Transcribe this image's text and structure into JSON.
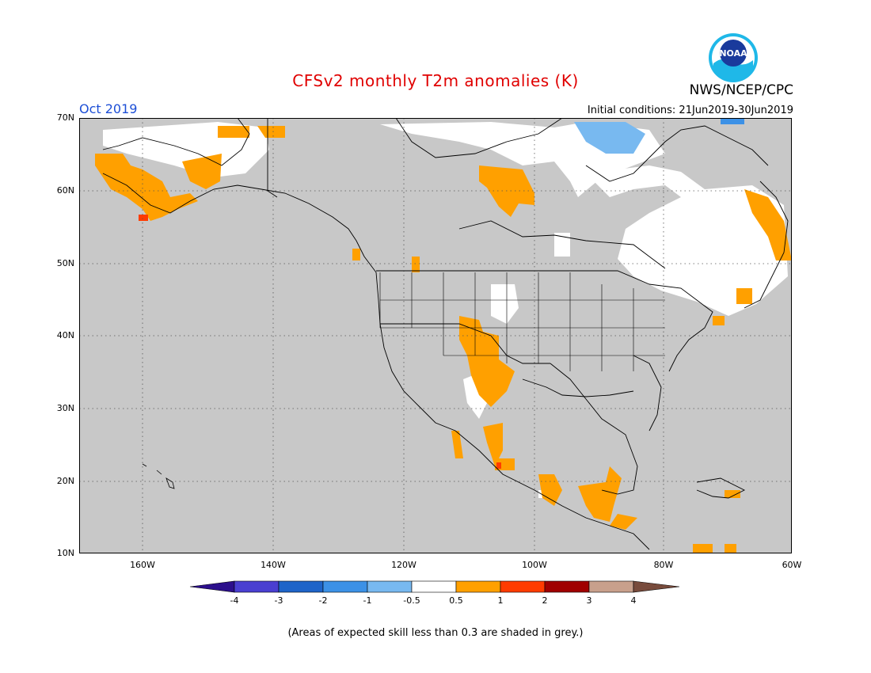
{
  "header": {
    "title": "CFSv2 monthly T2m anomalies (K)",
    "agency": "NWS/NCEP/CPC",
    "logo_text": "NOAA",
    "target_month": "Oct 2019",
    "initial_conditions": "Initial conditions: 21Jun2019-30Jun2019"
  },
  "map": {
    "lat_labels": [
      "70N",
      "60N",
      "50N",
      "40N",
      "30N",
      "20N",
      "10N"
    ],
    "lon_labels": [
      "160W",
      "140W",
      "120W",
      "100W",
      "80W",
      "60W"
    ],
    "ocean_color": "#c8c8c8",
    "land_skill_color": "#c8c8c8",
    "grid": true
  },
  "colorbar": {
    "tick_labels": [
      "-4",
      "-3",
      "-2",
      "-1",
      "-0.5",
      "0.5",
      "1",
      "2",
      "3",
      "4"
    ],
    "colors": [
      "#2c0f8c",
      "#4a3fd1",
      "#1e64c8",
      "#3c91e6",
      "#78b9f0",
      "#ffffff",
      "#ffa000",
      "#ff3c00",
      "#a00000",
      "#c8a08c",
      "#784b3c"
    ]
  },
  "legend_note": "(Areas of expected skill less than 0.3 are shaded in grey.)"
}
